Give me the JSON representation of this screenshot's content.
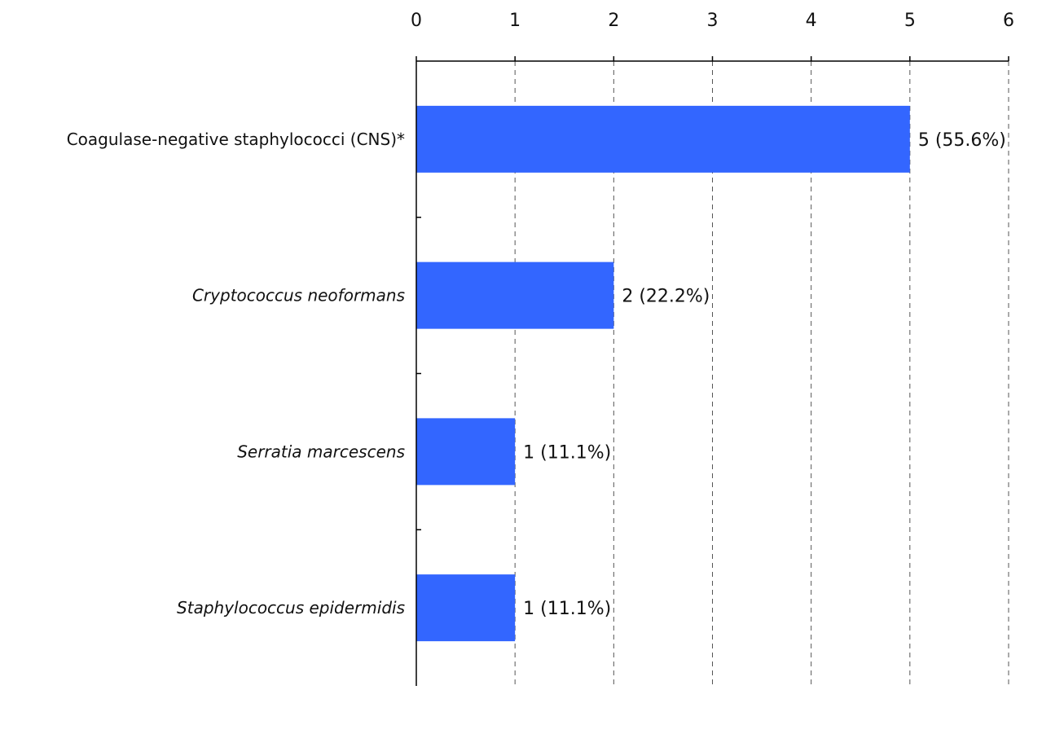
{
  "chart_data": {
    "type": "bar",
    "orientation": "horizontal",
    "categories": [
      "Coagulase-negative staphylococci (CNS)*",
      "Cryptococcus neoformans",
      "Serratia marcescens",
      "Staphylococcus epidermidis"
    ],
    "italic_categories": [
      false,
      true,
      true,
      true
    ],
    "values": [
      5,
      2,
      1,
      1
    ],
    "data_labels": [
      "5 (55.6%)",
      "2 (22.2%)",
      "1 (11.1%)",
      "1 (11.1%)"
    ],
    "x_ticks": [
      "0",
      "1",
      "2",
      "3",
      "4",
      "5",
      "6"
    ],
    "xlim": [
      0,
      6
    ],
    "x_axis_position": "top",
    "grid": "vertical-dashed",
    "colors": {
      "bar": "#3366ff",
      "axis": "#000000",
      "grid": "#555555"
    }
  }
}
